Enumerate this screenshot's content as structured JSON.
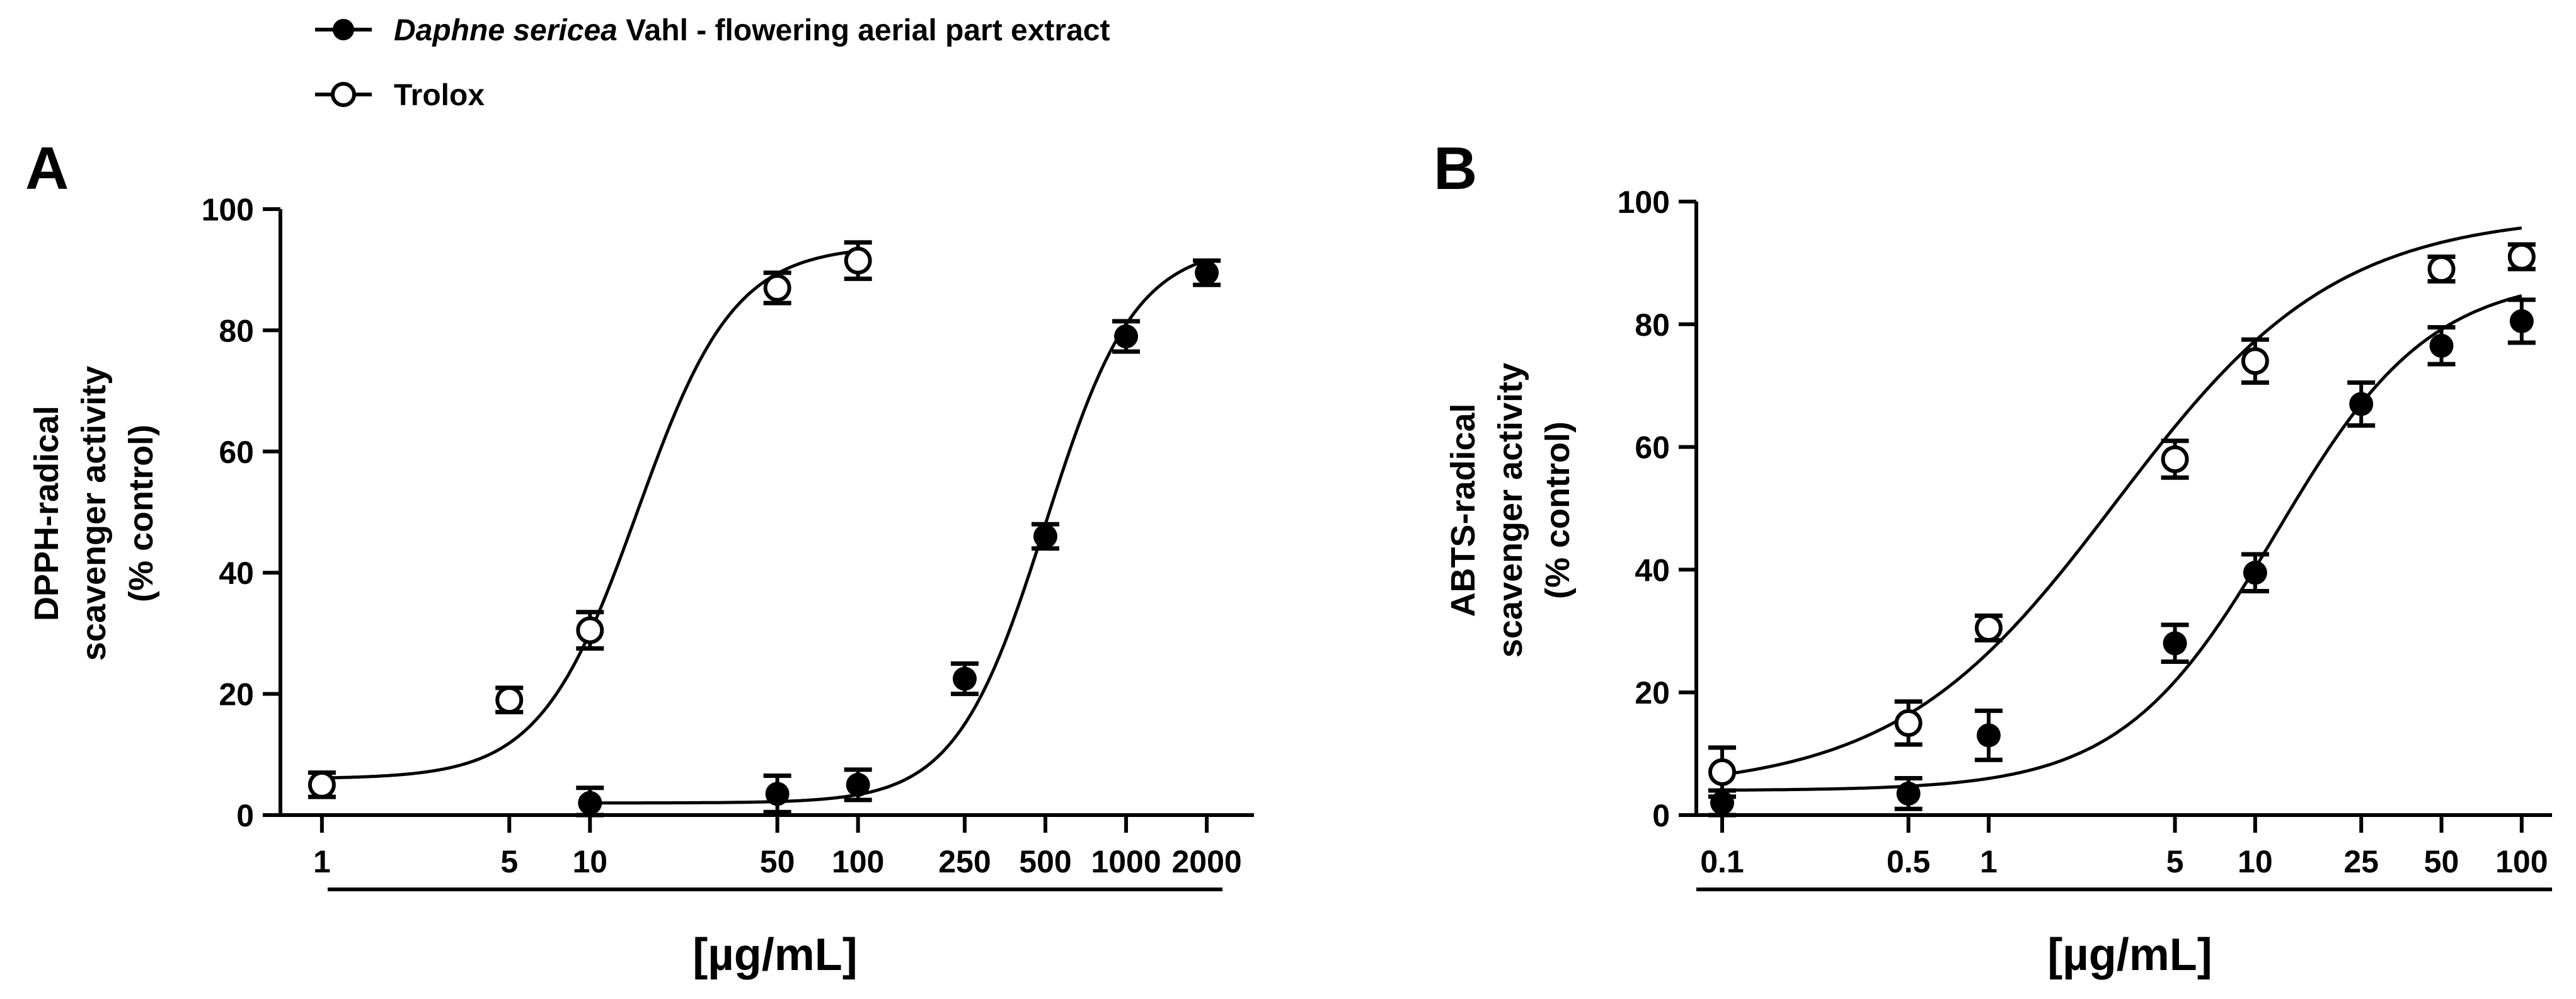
{
  "legend": [
    {
      "marker": "filled-circle",
      "italic": "Daphne sericea",
      "rest": " Vahl - flowering aerial part extract"
    },
    {
      "marker": "open-circle",
      "italic": "",
      "rest": "Trolox"
    }
  ],
  "chart_data": [
    {
      "type": "scatter",
      "panel": "A",
      "title": "",
      "ylabel_lines": [
        "DPPH-radical",
        "scavenger activity",
        "(% control)"
      ],
      "xlabel": "[µg/mL]",
      "x_scale": "log",
      "xlim": [
        0.7,
        3000
      ],
      "ylim": [
        0,
        100
      ],
      "y_ticks": [
        0,
        20,
        40,
        60,
        80,
        100
      ],
      "x_ticks": [
        1,
        5,
        10,
        50,
        100,
        250,
        500,
        1000,
        2000
      ],
      "series": [
        {
          "name": "Daphne sericea Vahl - flowering aerial part extract",
          "marker": "filled",
          "x": [
            10,
            50,
            100,
            250,
            500,
            1000,
            2000
          ],
          "y": [
            2,
            3.5,
            5,
            22.5,
            46,
            79,
            89.5
          ],
          "err": [
            2.5,
            3,
            2.5,
            2.5,
            2,
            2.5,
            2
          ],
          "fit": {
            "bottom": 2,
            "top": 94,
            "ec50": 500,
            "hill": 2.6
          }
        },
        {
          "name": "Trolox",
          "marker": "open",
          "x": [
            1,
            5,
            10,
            50,
            100
          ],
          "y": [
            5,
            19,
            30.5,
            87,
            91.5
          ],
          "err": [
            2,
            2,
            3,
            2.5,
            3
          ],
          "fit": {
            "bottom": 6,
            "top": 94,
            "ec50": 15,
            "hill": 2.4
          }
        }
      ]
    },
    {
      "type": "scatter",
      "panel": "B",
      "title": "",
      "ylabel_lines": [
        "ABTS-radical",
        "scavenger activity",
        "(% control)"
      ],
      "xlabel": "[µg/mL]",
      "x_scale": "log",
      "xlim": [
        0.08,
        130
      ],
      "ylim": [
        0,
        100
      ],
      "y_ticks": [
        0,
        20,
        40,
        60,
        80,
        100
      ],
      "x_ticks": [
        0.1,
        0.5,
        1,
        5,
        10,
        25,
        50,
        100
      ],
      "series": [
        {
          "name": "Daphne sericea Vahl - flowering aerial part extract",
          "marker": "filled",
          "x": [
            0.1,
            0.5,
            1,
            5,
            10,
            25,
            50,
            100
          ],
          "y": [
            2,
            3.5,
            13,
            28,
            39.5,
            67,
            76.5,
            80.5
          ],
          "err": [
            2,
            2.5,
            4,
            3,
            3,
            3.5,
            3,
            3.5
          ],
          "fit": {
            "bottom": 4,
            "top": 88,
            "ec50": 12,
            "hill": 1.5
          }
        },
        {
          "name": "Trolox",
          "marker": "open",
          "x": [
            0.1,
            0.5,
            1,
            5,
            10,
            50,
            100
          ],
          "y": [
            7,
            15,
            30.5,
            58,
            74,
            89,
            91
          ],
          "err": [
            4,
            3.5,
            2,
            3,
            3.5,
            2,
            2
          ],
          "fit": {
            "bottom": 4,
            "top": 98,
            "ec50": 3,
            "hill": 1.05
          }
        }
      ]
    }
  ]
}
